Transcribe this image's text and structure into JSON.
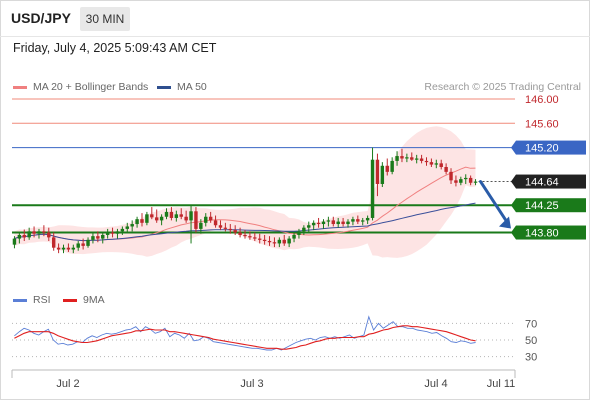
{
  "header": {
    "symbol": "USD/JPY",
    "timeframe": "30 MIN",
    "datetime": "Friday, July 4, 2025 5:09:43 AM CET"
  },
  "legend": {
    "ma20_label": "MA 20 + Bollinger Bands",
    "ma50_label": "MA 50",
    "research_text": "Research © 2025 Trading Central",
    "ma20_color": "#f08080",
    "ma50_color": "#2f4f8f"
  },
  "rsi_legend": {
    "rsi_label": "RSI",
    "ma9_label": "9MA",
    "rsi_color": "#5b7fd6",
    "ma9_color": "#e02020"
  },
  "chart_data": [
    {
      "type": "candlestick",
      "title": "",
      "ylim": [
        143.1,
        146.05
      ],
      "x_ticks": [
        "Jul 2",
        "Jul 3",
        "Jul 4",
        "Jul 11"
      ],
      "colors": {
        "up": "#1a7a1a",
        "down": "#c0282d",
        "bollinger": "#fde4e4",
        "ma20": "#f08080",
        "ma50": "#3a4f9a",
        "arrow": "#2a5ca8"
      },
      "levels": [
        {
          "value": 146.0,
          "label": "146.00",
          "kind": "resistance-thin"
        },
        {
          "value": 145.6,
          "label": "145.60",
          "kind": "resistance-thin"
        },
        {
          "value": 145.2,
          "label": "145.20",
          "kind": "blue"
        },
        {
          "value": 144.64,
          "label": "144.64",
          "kind": "last-price"
        },
        {
          "value": 144.25,
          "label": "144.25",
          "kind": "support-green"
        },
        {
          "value": 143.8,
          "label": "143.80",
          "kind": "support-green"
        }
      ],
      "candles": [
        {
          "o": 143.6,
          "h": 143.74,
          "l": 143.54,
          "c": 143.7
        },
        {
          "o": 143.7,
          "h": 143.79,
          "l": 143.62,
          "c": 143.76
        },
        {
          "o": 143.76,
          "h": 143.85,
          "l": 143.66,
          "c": 143.72
        },
        {
          "o": 143.72,
          "h": 143.88,
          "l": 143.68,
          "c": 143.82
        },
        {
          "o": 143.82,
          "h": 143.9,
          "l": 143.72,
          "c": 143.78
        },
        {
          "o": 143.78,
          "h": 143.86,
          "l": 143.7,
          "c": 143.82
        },
        {
          "o": 143.82,
          "h": 143.92,
          "l": 143.74,
          "c": 143.8
        },
        {
          "o": 143.8,
          "h": 143.88,
          "l": 143.66,
          "c": 143.72
        },
        {
          "o": 143.72,
          "h": 143.8,
          "l": 143.5,
          "c": 143.55
        },
        {
          "o": 143.55,
          "h": 143.62,
          "l": 143.46,
          "c": 143.52
        },
        {
          "o": 143.52,
          "h": 143.6,
          "l": 143.46,
          "c": 143.55
        },
        {
          "o": 143.55,
          "h": 143.62,
          "l": 143.48,
          "c": 143.52
        },
        {
          "o": 143.52,
          "h": 143.6,
          "l": 143.46,
          "c": 143.55
        },
        {
          "o": 143.55,
          "h": 143.66,
          "l": 143.5,
          "c": 143.62
        },
        {
          "o": 143.62,
          "h": 143.7,
          "l": 143.52,
          "c": 143.58
        },
        {
          "o": 143.58,
          "h": 143.72,
          "l": 143.55,
          "c": 143.68
        },
        {
          "o": 143.68,
          "h": 143.8,
          "l": 143.62,
          "c": 143.74
        },
        {
          "o": 143.74,
          "h": 143.82,
          "l": 143.64,
          "c": 143.7
        },
        {
          "o": 143.7,
          "h": 143.8,
          "l": 143.62,
          "c": 143.76
        },
        {
          "o": 143.76,
          "h": 143.86,
          "l": 143.7,
          "c": 143.8
        },
        {
          "o": 143.8,
          "h": 143.88,
          "l": 143.72,
          "c": 143.78
        },
        {
          "o": 143.78,
          "h": 143.86,
          "l": 143.7,
          "c": 143.82
        },
        {
          "o": 143.82,
          "h": 143.9,
          "l": 143.76,
          "c": 143.86
        },
        {
          "o": 143.86,
          "h": 143.96,
          "l": 143.8,
          "c": 143.9
        },
        {
          "o": 143.9,
          "h": 144.0,
          "l": 143.82,
          "c": 143.94
        },
        {
          "o": 143.94,
          "h": 144.06,
          "l": 143.88,
          "c": 144.02
        },
        {
          "o": 144.02,
          "h": 144.12,
          "l": 143.9,
          "c": 143.96
        },
        {
          "o": 143.96,
          "h": 144.14,
          "l": 143.92,
          "c": 144.1
        },
        {
          "o": 144.1,
          "h": 144.22,
          "l": 144.02,
          "c": 144.05
        },
        {
          "o": 144.05,
          "h": 144.18,
          "l": 143.96,
          "c": 144.0
        },
        {
          "o": 144.0,
          "h": 144.1,
          "l": 143.92,
          "c": 144.06
        },
        {
          "o": 144.06,
          "h": 144.2,
          "l": 144.02,
          "c": 144.14
        },
        {
          "o": 144.14,
          "h": 144.22,
          "l": 144.0,
          "c": 144.04
        },
        {
          "o": 144.04,
          "h": 144.16,
          "l": 143.98,
          "c": 144.1
        },
        {
          "o": 144.1,
          "h": 144.2,
          "l": 144.02,
          "c": 144.06
        },
        {
          "o": 144.06,
          "h": 144.16,
          "l": 143.96,
          "c": 144.0
        },
        {
          "o": 144.0,
          "h": 144.24,
          "l": 143.62,
          "c": 144.15
        },
        {
          "o": 144.15,
          "h": 144.22,
          "l": 143.8,
          "c": 143.86
        },
        {
          "o": 143.86,
          "h": 144.02,
          "l": 143.78,
          "c": 143.96
        },
        {
          "o": 143.96,
          "h": 144.12,
          "l": 143.9,
          "c": 144.06
        },
        {
          "o": 144.06,
          "h": 144.14,
          "l": 143.96,
          "c": 144.0
        },
        {
          "o": 144.0,
          "h": 144.08,
          "l": 143.88,
          "c": 143.92
        },
        {
          "o": 143.92,
          "h": 144.0,
          "l": 143.84,
          "c": 143.88
        },
        {
          "o": 143.88,
          "h": 143.96,
          "l": 143.82,
          "c": 143.86
        },
        {
          "o": 143.86,
          "h": 143.94,
          "l": 143.78,
          "c": 143.84
        },
        {
          "o": 143.84,
          "h": 143.92,
          "l": 143.76,
          "c": 143.8
        },
        {
          "o": 143.8,
          "h": 143.88,
          "l": 143.72,
          "c": 143.76
        },
        {
          "o": 143.76,
          "h": 143.84,
          "l": 143.7,
          "c": 143.74
        },
        {
          "o": 143.74,
          "h": 143.82,
          "l": 143.68,
          "c": 143.72
        },
        {
          "o": 143.72,
          "h": 143.8,
          "l": 143.66,
          "c": 143.7
        },
        {
          "o": 143.7,
          "h": 143.78,
          "l": 143.62,
          "c": 143.68
        },
        {
          "o": 143.68,
          "h": 143.76,
          "l": 143.6,
          "c": 143.66
        },
        {
          "o": 143.66,
          "h": 143.74,
          "l": 143.58,
          "c": 143.64
        },
        {
          "o": 143.64,
          "h": 143.72,
          "l": 143.56,
          "c": 143.62
        },
        {
          "o": 143.62,
          "h": 143.72,
          "l": 143.56,
          "c": 143.68
        },
        {
          "o": 143.68,
          "h": 143.76,
          "l": 143.58,
          "c": 143.62
        },
        {
          "o": 143.62,
          "h": 143.74,
          "l": 143.56,
          "c": 143.7
        },
        {
          "o": 143.7,
          "h": 143.8,
          "l": 143.64,
          "c": 143.76
        },
        {
          "o": 143.76,
          "h": 143.86,
          "l": 143.7,
          "c": 143.82
        },
        {
          "o": 143.82,
          "h": 143.92,
          "l": 143.76,
          "c": 143.88
        },
        {
          "o": 143.88,
          "h": 143.98,
          "l": 143.8,
          "c": 143.92
        },
        {
          "o": 143.92,
          "h": 144.0,
          "l": 143.84,
          "c": 143.96
        },
        {
          "o": 143.96,
          "h": 144.04,
          "l": 143.88,
          "c": 143.94
        },
        {
          "o": 143.94,
          "h": 144.02,
          "l": 143.86,
          "c": 143.98
        },
        {
          "o": 143.98,
          "h": 144.06,
          "l": 143.9,
          "c": 144.0
        },
        {
          "o": 144.0,
          "h": 144.06,
          "l": 143.9,
          "c": 143.94
        },
        {
          "o": 143.94,
          "h": 144.04,
          "l": 143.88,
          "c": 143.98
        },
        {
          "o": 143.98,
          "h": 144.04,
          "l": 143.9,
          "c": 143.94
        },
        {
          "o": 143.94,
          "h": 144.02,
          "l": 143.88,
          "c": 143.98
        },
        {
          "o": 143.98,
          "h": 144.06,
          "l": 143.92,
          "c": 144.02
        },
        {
          "o": 144.02,
          "h": 144.08,
          "l": 143.94,
          "c": 143.98
        },
        {
          "o": 143.98,
          "h": 144.04,
          "l": 143.92,
          "c": 144.0
        },
        {
          "o": 144.0,
          "h": 144.08,
          "l": 143.94,
          "c": 144.04
        },
        {
          "o": 144.04,
          "h": 145.2,
          "l": 144.0,
          "c": 145.0
        },
        {
          "o": 145.0,
          "h": 145.1,
          "l": 144.4,
          "c": 144.6
        },
        {
          "o": 144.6,
          "h": 144.96,
          "l": 144.55,
          "c": 144.9
        },
        {
          "o": 144.9,
          "h": 145.02,
          "l": 144.74,
          "c": 144.8
        },
        {
          "o": 144.8,
          "h": 145.04,
          "l": 144.76,
          "c": 144.98
        },
        {
          "o": 144.98,
          "h": 145.14,
          "l": 144.9,
          "c": 145.06
        },
        {
          "o": 145.06,
          "h": 145.18,
          "l": 144.96,
          "c": 145.02
        },
        {
          "o": 145.02,
          "h": 145.1,
          "l": 144.96,
          "c": 145.04
        },
        {
          "o": 145.04,
          "h": 145.12,
          "l": 144.98,
          "c": 145.0
        },
        {
          "o": 145.0,
          "h": 145.08,
          "l": 144.94,
          "c": 145.02
        },
        {
          "o": 145.02,
          "h": 145.08,
          "l": 144.94,
          "c": 144.98
        },
        {
          "o": 144.98,
          "h": 145.04,
          "l": 144.9,
          "c": 144.96
        },
        {
          "o": 144.96,
          "h": 145.02,
          "l": 144.88,
          "c": 144.92
        },
        {
          "o": 144.92,
          "h": 145.0,
          "l": 144.86,
          "c": 144.94
        },
        {
          "o": 144.94,
          "h": 145.0,
          "l": 144.84,
          "c": 144.88
        },
        {
          "o": 144.88,
          "h": 144.94,
          "l": 144.76,
          "c": 144.8
        },
        {
          "o": 144.8,
          "h": 144.86,
          "l": 144.6,
          "c": 144.66
        },
        {
          "o": 144.66,
          "h": 144.74,
          "l": 144.56,
          "c": 144.62
        },
        {
          "o": 144.62,
          "h": 144.72,
          "l": 144.58,
          "c": 144.68
        },
        {
          "o": 144.68,
          "h": 144.76,
          "l": 144.6,
          "c": 144.7
        },
        {
          "o": 144.7,
          "h": 144.74,
          "l": 144.58,
          "c": 144.62
        },
        {
          "o": 144.62,
          "h": 144.68,
          "l": 144.58,
          "c": 144.64
        }
      ],
      "projection": {
        "from": 144.64,
        "to": 143.8
      }
    },
    {
      "type": "line",
      "title": "",
      "ylim": [
        20,
        80
      ],
      "y_ticks": [
        30,
        50,
        70
      ],
      "series": [
        {
          "name": "RSI",
          "values": [
            55,
            60,
            64,
            62,
            58,
            56,
            60,
            63,
            50,
            45,
            46,
            44,
            45,
            48,
            47,
            52,
            55,
            53,
            56,
            58,
            57,
            58,
            60,
            62,
            63,
            66,
            60,
            66,
            63,
            58,
            60,
            64,
            54,
            58,
            56,
            52,
            58,
            49,
            50,
            54,
            52,
            48,
            47,
            46,
            45,
            44,
            43,
            42,
            41,
            40,
            40,
            39,
            38,
            38,
            40,
            38,
            41,
            44,
            47,
            49,
            51,
            52,
            50,
            53,
            54,
            52,
            54,
            52,
            54,
            56,
            52,
            54,
            56,
            78,
            62,
            70,
            64,
            68,
            72,
            66,
            66,
            64,
            64,
            62,
            61,
            60,
            58,
            59,
            55,
            52,
            48,
            47,
            49,
            48,
            46,
            47
          ]
        },
        {
          "name": "9MA",
          "values": [
            52,
            55,
            58,
            60,
            60,
            60,
            60,
            60,
            58,
            55,
            53,
            51,
            49,
            48,
            47,
            47,
            48,
            49,
            51,
            53,
            55,
            56,
            57,
            58,
            59,
            61,
            61,
            62,
            63,
            62,
            62,
            62,
            60,
            60,
            59,
            58,
            57,
            56,
            55,
            54,
            53,
            51,
            50,
            49,
            48,
            47,
            46,
            45,
            44,
            43,
            42,
            41,
            40,
            40,
            40,
            39,
            39,
            40,
            41,
            43,
            44,
            46,
            48,
            49,
            51,
            52,
            52,
            53,
            53,
            53,
            53,
            54,
            54,
            57,
            58,
            60,
            62,
            63,
            65,
            66,
            67,
            67,
            66,
            66,
            65,
            64,
            63,
            62,
            61,
            60,
            58,
            56,
            54,
            52,
            50,
            49
          ]
        }
      ]
    }
  ]
}
